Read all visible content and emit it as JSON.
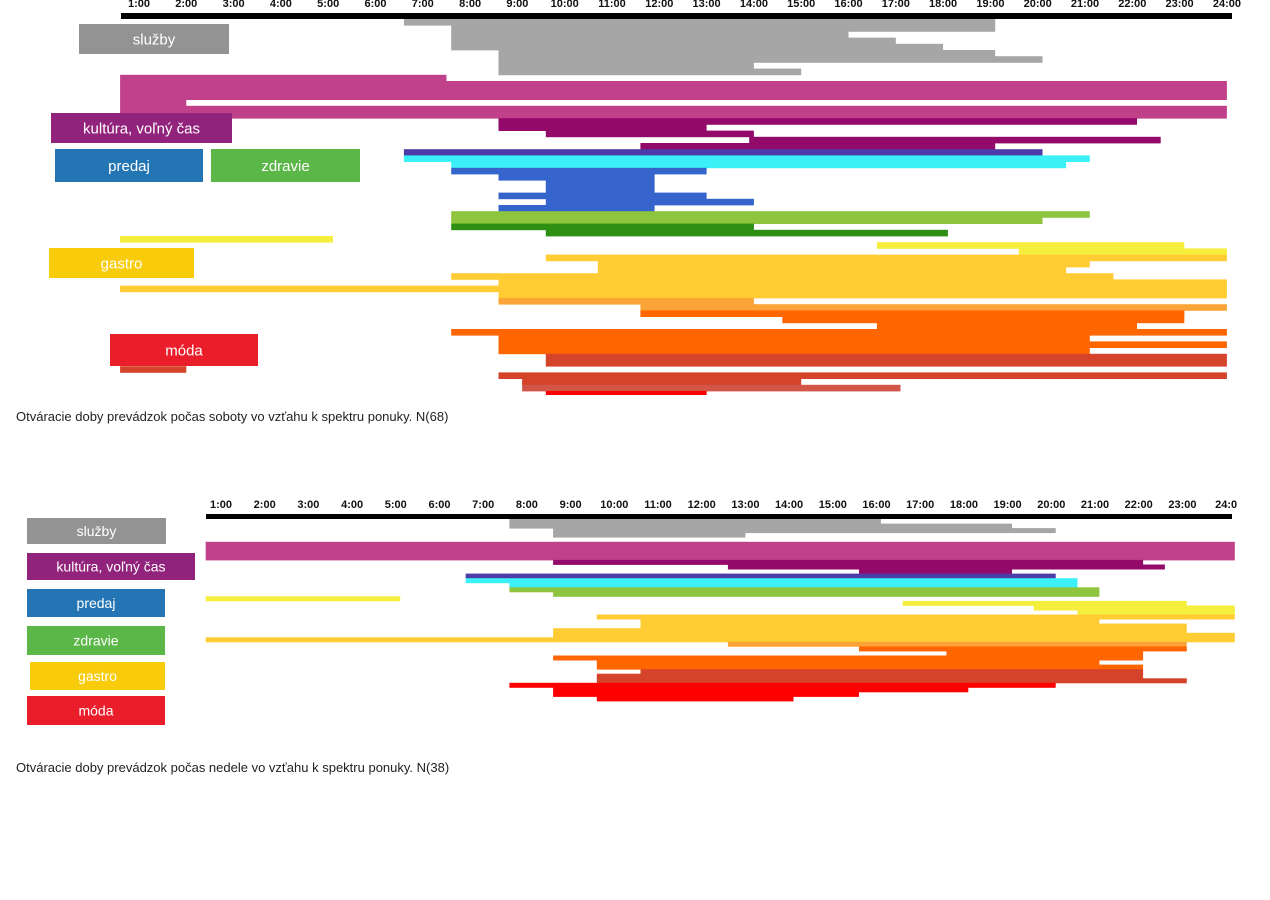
{
  "chart_data": [
    {
      "type": "bar",
      "caption": "Otváracie doby prevádzok počas soboty vo vzťahu k spektru ponuky. N(68)",
      "hour_labels": [
        "1:00",
        "2:00",
        "3:00",
        "4:00",
        "5:00",
        "6:00",
        "7:00",
        "8:00",
        "9:00",
        "10:00",
        "11:00",
        "12:00",
        "13:00",
        "14:00",
        "15:00",
        "16:00",
        "17:00",
        "18:00",
        "19:00",
        "20:00",
        "21:00",
        "22:00",
        "23:00",
        "24:00"
      ],
      "xlim": [
        0.6,
        24.05
      ],
      "categories": [
        {
          "key": "sluzby",
          "label": "služby",
          "color": "#939393"
        },
        {
          "key": "kultura",
          "label": "kultúra, voľný čas",
          "color": "#92237c"
        },
        {
          "key": "predaj",
          "label": "predaj",
          "color": "#2475b4"
        },
        {
          "key": "zdravie",
          "label": "zdravie",
          "color": "#5bb848"
        },
        {
          "key": "gastro",
          "label": "gastro",
          "color": "#f9cc0b"
        },
        {
          "key": "moda",
          "label": "móda",
          "color": "#e91e2a"
        }
      ],
      "series": [
        {
          "category": "sluzby",
          "color": "#a6a6a6",
          "bars": [
            [
              6.6,
              19.1
            ],
            [
              7.6,
              19.1
            ],
            [
              7.6,
              16.0
            ],
            [
              7.6,
              17.0
            ],
            [
              7.6,
              18.0
            ],
            [
              8.6,
              19.1
            ],
            [
              8.6,
              20.1
            ],
            [
              8.6,
              14.0
            ],
            [
              8.6,
              15.0
            ]
          ]
        },
        {
          "category": "kultura",
          "color": "#c0418a",
          "bars": [
            [
              0.6,
              7.5
            ],
            [
              0.6,
              24.0
            ],
            [
              0.6,
              24.0
            ],
            [
              0.6,
              24.0
            ],
            [
              0.6,
              2.0
            ],
            [
              0.6,
              24.0
            ],
            [
              0.6,
              24.0
            ]
          ]
        },
        {
          "category": "kultura",
          "color": "#930a6a",
          "bars": [
            [
              8.6,
              22.1
            ],
            [
              8.6,
              13.0
            ],
            [
              9.6,
              14.0
            ],
            [
              13.9,
              22.6
            ],
            [
              11.6,
              19.1
            ]
          ]
        },
        {
          "category": "kultura",
          "color": "#4b3ca7",
          "bars": [
            [
              6.6,
              20.1
            ]
          ]
        },
        {
          "category": "predaj",
          "color": "#3bf0f6",
          "bars": [
            [
              6.6,
              21.1
            ],
            [
              7.6,
              20.6
            ]
          ]
        },
        {
          "category": "predaj",
          "color": "#3565cc",
          "bars": [
            [
              7.6,
              13.0
            ],
            [
              8.6,
              11.9
            ],
            [
              9.6,
              11.9
            ],
            [
              9.6,
              11.9
            ],
            [
              8.6,
              13.0
            ],
            [
              9.6,
              14.0
            ],
            [
              8.6,
              11.9
            ]
          ]
        },
        {
          "category": "zdravie",
          "color": "#8fc43f",
          "bars": [
            [
              7.6,
              21.1
            ],
            [
              7.6,
              20.1
            ]
          ]
        },
        {
          "category": "zdravie",
          "color": "#2d8f13",
          "bars": [
            [
              7.6,
              14.0
            ],
            [
              9.6,
              18.1
            ]
          ]
        },
        {
          "category": "gastro",
          "color": "#f6ee3c",
          "bars": [
            [
              0.6,
              5.1
            ],
            [
              16.6,
              23.1
            ],
            [
              19.6,
              24.0
            ]
          ]
        },
        {
          "category": "gastro",
          "color": "#ffcc33",
          "bars": [
            [
              9.6,
              24.0
            ],
            [
              10.7,
              21.1
            ],
            [
              10.7,
              20.6
            ],
            [
              7.6,
              21.6
            ],
            [
              8.6,
              24.0
            ],
            [
              0.6,
              24.0
            ],
            [
              8.6,
              24.0
            ]
          ]
        },
        {
          "category": "gastro",
          "color": "#fba437",
          "bars": [
            [
              8.6,
              14.0
            ],
            [
              11.6,
              24.0
            ]
          ]
        },
        {
          "category": "gastro",
          "color": "#ff6600",
          "bars": [
            [
              11.6,
              23.1
            ],
            [
              14.6,
              23.1
            ],
            [
              16.6,
              22.1
            ],
            [
              7.6,
              24.0
            ],
            [
              8.6,
              21.1
            ],
            [
              8.6,
              24.0
            ],
            [
              8.6,
              21.1
            ]
          ]
        },
        {
          "category": "gastro",
          "color": "#d5432b",
          "bars": [
            [
              9.6,
              24.0
            ],
            [
              9.6,
              24.0
            ],
            [
              0.6,
              2.0
            ],
            [
              8.6,
              24.0
            ],
            [
              9.1,
              15.0
            ]
          ]
        },
        {
          "category": "moda",
          "color": "#d25548",
          "bars": [
            [
              9.1,
              17.1
            ]
          ]
        },
        {
          "category": "moda",
          "color": "#ff0000",
          "bars": [
            [
              9.6,
              13.0
            ],
            [
              9.6,
              17.1
            ],
            [
              7.6,
              20.1
            ],
            [
              8.6,
              11.9
            ],
            [
              8.6,
              13.0
            ],
            [
              8.6,
              14.0
            ],
            [
              9.6,
              15.6
            ]
          ]
        }
      ]
    },
    {
      "type": "bar",
      "caption": "Otváracie doby prevádzok počas nedele vo vzťahu k spektru ponuky. N(38)",
      "hour_labels": [
        "1:00",
        "2:00",
        "3:00",
        "4:00",
        "5:00",
        "6:00",
        "7:00",
        "8:00",
        "9:00",
        "10:00",
        "11:00",
        "12:00",
        "13:00",
        "14:00",
        "15:00",
        "16:00",
        "17:00",
        "18:00",
        "19:00",
        "20:00",
        "21:00",
        "22:00",
        "23:00",
        "24:0"
      ],
      "xlim": [
        0.65,
        24.2
      ],
      "categories": [
        {
          "key": "sluzby",
          "label": "služby",
          "color": "#939393"
        },
        {
          "key": "kultura",
          "label": "kultúra, voľný čas",
          "color": "#92237c"
        },
        {
          "key": "predaj",
          "label": "predaj",
          "color": "#2475b4"
        },
        {
          "key": "zdravie",
          "label": "zdravie",
          "color": "#5bb848"
        },
        {
          "key": "gastro",
          "label": "gastro",
          "color": "#f9cc0b"
        },
        {
          "key": "moda",
          "label": "móda",
          "color": "#e91e2a"
        }
      ],
      "series": [
        {
          "category": "sluzby",
          "color": "#a6a6a6",
          "bars": [
            [
              7.6,
              16.1
            ],
            [
              7.6,
              19.1
            ],
            [
              8.6,
              20.1
            ],
            [
              8.6,
              13.0
            ],
            [
              8.6,
              8.5
            ]
          ]
        },
        {
          "category": "kultura",
          "color": "#c0418a",
          "bars": [
            [
              0.65,
              24.2
            ],
            [
              0.65,
              24.2
            ],
            [
              0.65,
              24.2
            ],
            [
              0.65,
              24.2
            ]
          ]
        },
        {
          "category": "kultura",
          "color": "#930a6a",
          "bars": [
            [
              8.6,
              22.1
            ],
            [
              12.6,
              22.6
            ],
            [
              15.6,
              19.1
            ]
          ]
        },
        {
          "category": "kultura",
          "color": "#4b3ca7",
          "bars": [
            [
              6.6,
              20.1
            ]
          ]
        },
        {
          "category": "predaj",
          "color": "#3bf0f6",
          "bars": [
            [
              6.6,
              20.6
            ],
            [
              7.6,
              20.6
            ]
          ]
        },
        {
          "category": "zdravie",
          "color": "#8fc43f",
          "bars": [
            [
              7.6,
              21.1
            ],
            [
              8.6,
              21.1
            ]
          ]
        },
        {
          "category": "gastro",
          "color": "#f6ee3c",
          "bars": [
            [
              0.65,
              5.1
            ],
            [
              16.6,
              23.1
            ],
            [
              19.6,
              24.2
            ],
            [
              20.6,
              24.2
            ]
          ]
        },
        {
          "category": "gastro",
          "color": "#ffcc33",
          "bars": [
            [
              9.6,
              24.2
            ],
            [
              10.6,
              21.1
            ],
            [
              10.6,
              23.1
            ],
            [
              8.6,
              23.1
            ],
            [
              8.6,
              24.2
            ],
            [
              0.65,
              24.2
            ]
          ]
        },
        {
          "category": "gastro",
          "color": "#fba437",
          "bars": [
            [
              12.6,
              23.1
            ]
          ]
        },
        {
          "category": "gastro",
          "color": "#ff6600",
          "bars": [
            [
              15.6,
              23.1
            ],
            [
              17.6,
              22.1
            ],
            [
              8.6,
              22.1
            ],
            [
              9.6,
              21.1
            ],
            [
              9.6,
              22.1
            ]
          ]
        },
        {
          "category": "gastro",
          "color": "#d5432b",
          "bars": [
            [
              10.6,
              22.1
            ],
            [
              9.6,
              22.1
            ],
            [
              9.6,
              23.1
            ]
          ]
        },
        {
          "category": "moda",
          "color": "#ff0000",
          "bars": [
            [
              7.6,
              20.1
            ],
            [
              8.6,
              18.1
            ],
            [
              8.6,
              15.6
            ],
            [
              9.6,
              14.1
            ]
          ]
        }
      ]
    }
  ]
}
